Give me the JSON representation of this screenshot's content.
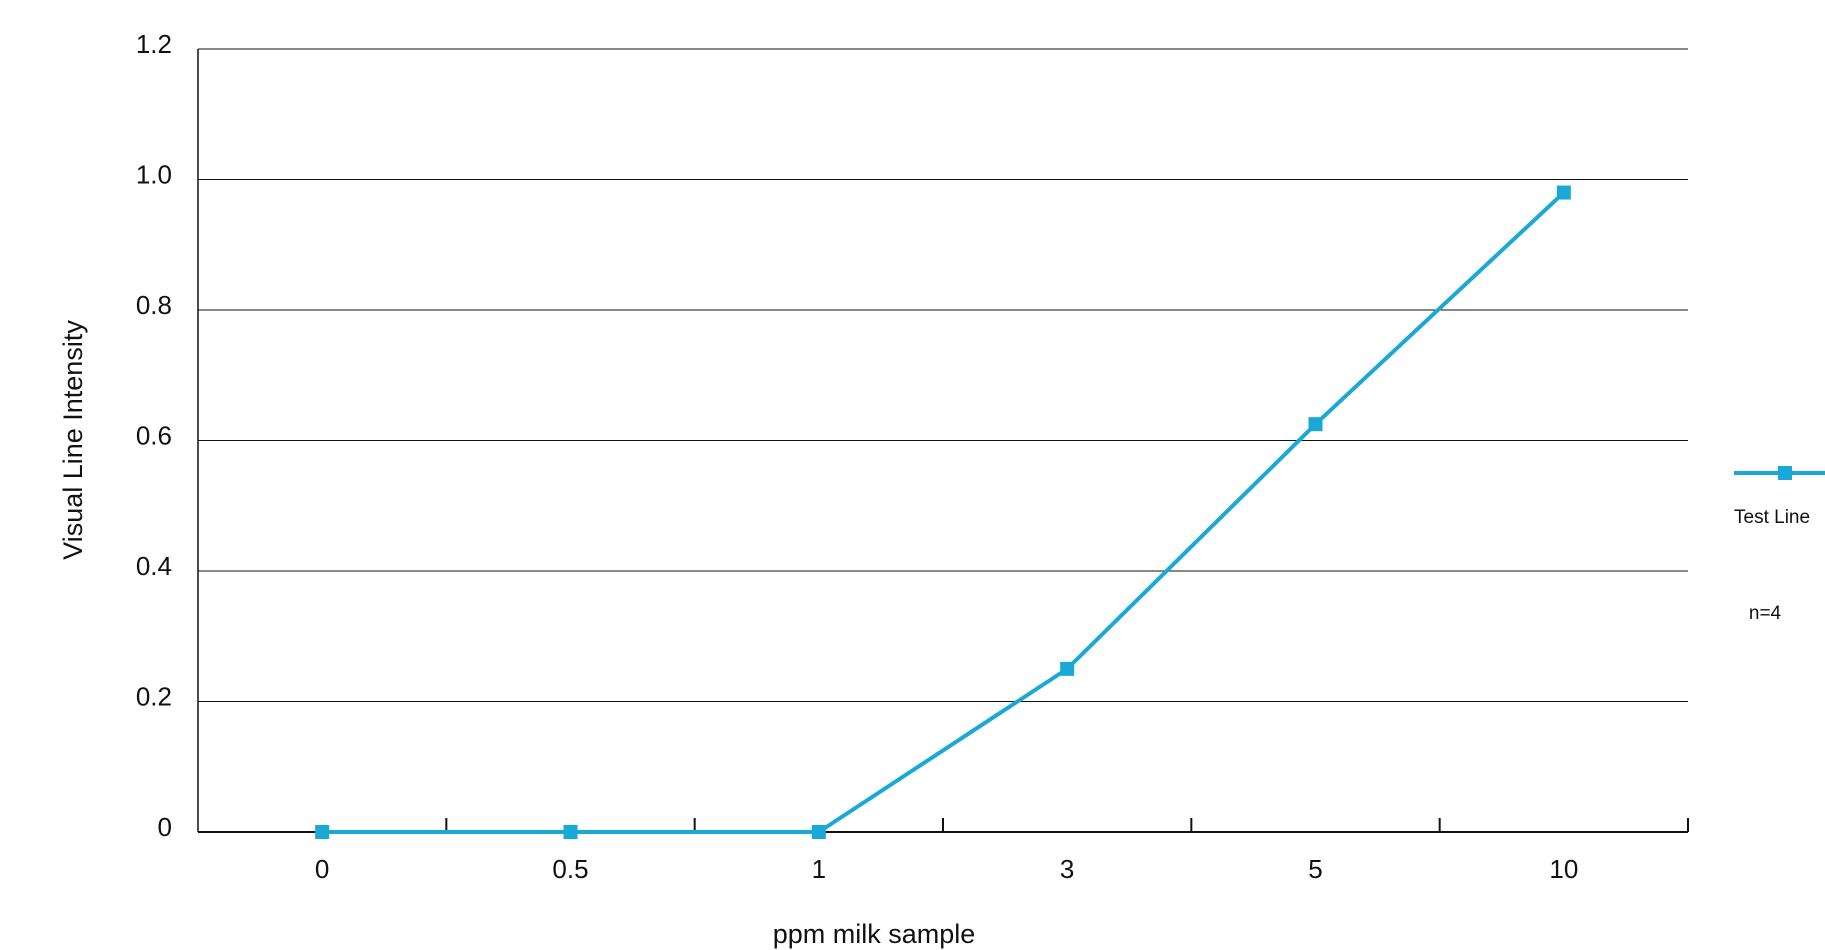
{
  "chart_data": {
    "type": "line",
    "categories": [
      "0",
      "0.5",
      "1",
      "3",
      "5",
      "10"
    ],
    "series": [
      {
        "name": "Test Line",
        "values": [
          0,
          0,
          0,
          0.25,
          0.625,
          0.98
        ],
        "color": "#1aa8d6",
        "marker": "square"
      }
    ],
    "ylabel": "Visual Line Intensity",
    "xlabel": "ppm milk sample",
    "ylim": [
      0,
      1.2
    ],
    "yticks": [
      "0",
      "0.2",
      "0.4",
      "0.6",
      "0.8",
      "1.0",
      "1.2"
    ],
    "grid": true,
    "legend_placement": "right",
    "annotation": "n=4"
  }
}
